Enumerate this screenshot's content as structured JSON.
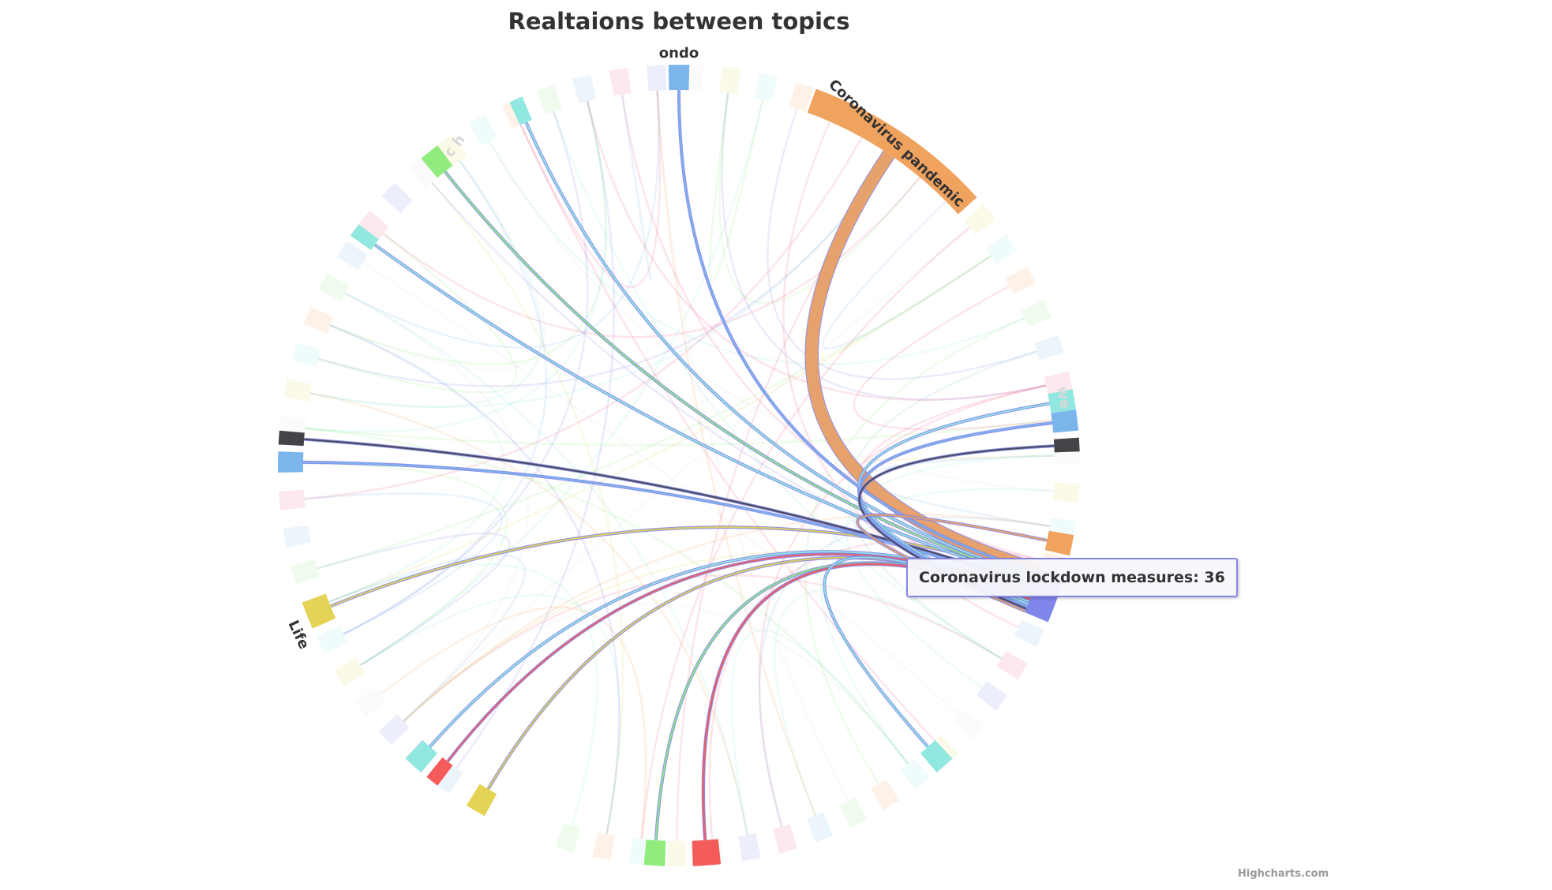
{
  "page": {
    "title": "Realtaions between topics",
    "credits": "Highcharts.com"
  },
  "tooltip": {
    "text": "Coronavirus lockdown measures: 36"
  },
  "chart_data": {
    "type": "dependencywheel",
    "title": "Realtaions between topics",
    "center_node": "Coronavirus lockdown measures",
    "center_node_color": "#8085e9",
    "hovered_value": 36,
    "printed_labels": [
      {
        "text": "ondo",
        "color": "#333333"
      },
      {
        "text": "Coronavirus pandemic",
        "color": "#333333"
      },
      {
        "text": "Life",
        "color": "#333333"
      },
      {
        "text": "c h",
        "color": "#d8d8d8"
      },
      {
        "text": "we",
        "color": "#d8d8d8"
      }
    ],
    "highlighted_nodes": [
      {
        "label": "Coronavirus pandemic",
        "color": "#f0a35e",
        "weight": 13
      },
      {
        "label": "ondo",
        "color": "#7cb5ec",
        "weight": 1
      },
      {
        "label": "Life",
        "color": "#e4d354",
        "weight": 1
      },
      {
        "label": "",
        "color": "#91e8e1",
        "weight": 1
      },
      {
        "label": "",
        "color": "#90ed7d",
        "weight": 1
      },
      {
        "label": "",
        "color": "#91e8e1",
        "weight": 1
      },
      {
        "label": "",
        "color": "#434348",
        "weight": 1
      },
      {
        "label": "",
        "color": "#7cb5ec",
        "weight": 1
      },
      {
        "label": "",
        "color": "#91e8e1",
        "weight": 1
      },
      {
        "label": "",
        "color": "#f45b5b",
        "weight": 1
      },
      {
        "label": "",
        "color": "#e4d354",
        "weight": 1
      },
      {
        "label": "",
        "color": "#90ed7d",
        "weight": 1
      },
      {
        "label": "",
        "color": "#f45b5b",
        "weight": 2
      },
      {
        "label": "",
        "color": "#91e8e1",
        "weight": 1
      },
      {
        "label": "",
        "color": "#91e8e1",
        "weight": 1
      },
      {
        "label": "",
        "color": "#7cb5ec",
        "weight": 1
      },
      {
        "label": "",
        "color": "#434348",
        "weight": 1
      },
      {
        "label": "",
        "color": "#f0a35e",
        "weight": 1
      }
    ],
    "background_node_colors": [
      "#e0e0e0",
      "#f7a35c",
      "#f15c80",
      "#e4d354",
      "#90ed7d",
      "#8085e9",
      "#91e8e1",
      "#7cb5ec"
    ]
  }
}
